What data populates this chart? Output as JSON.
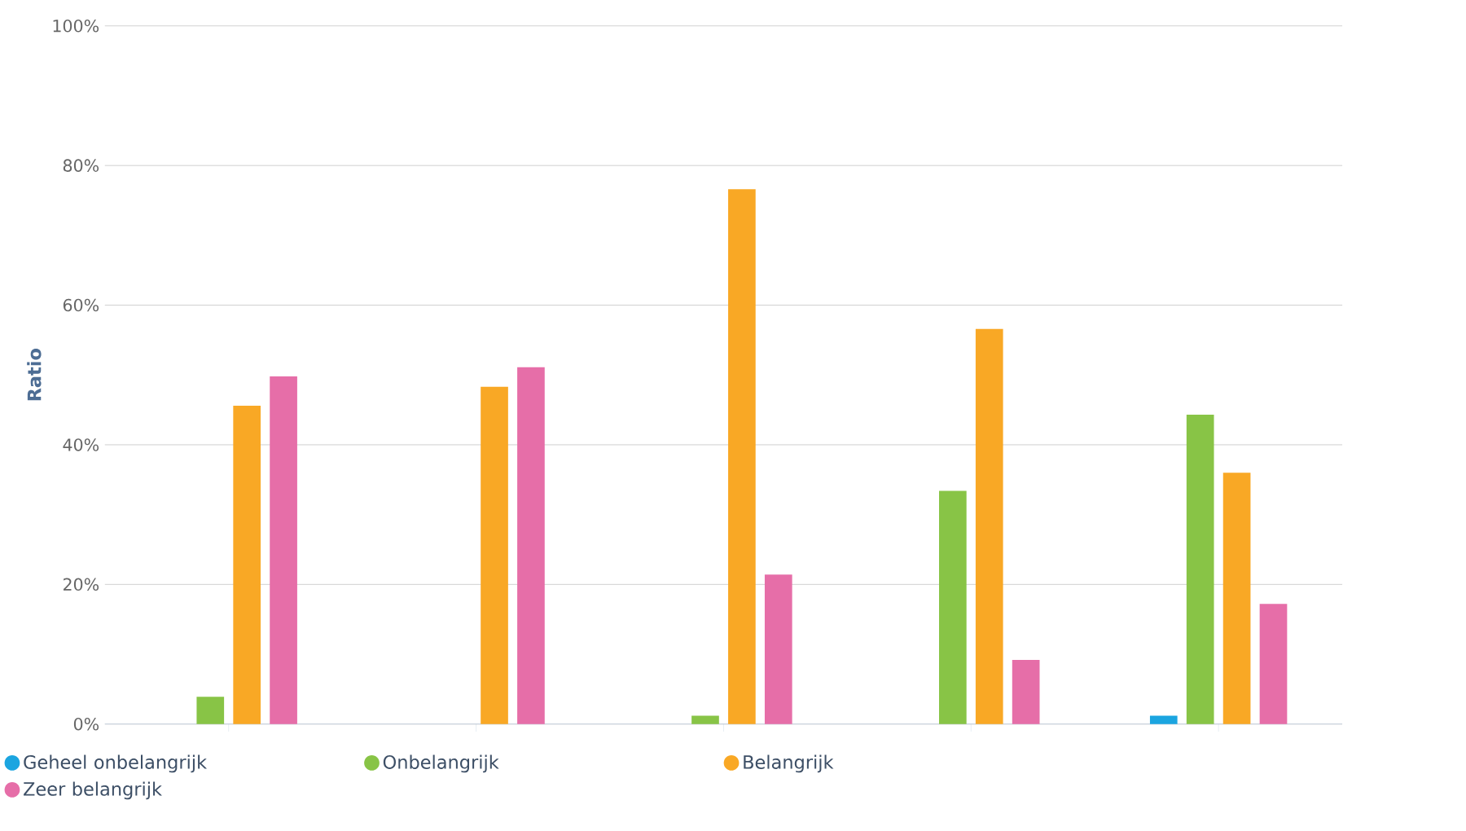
{
  "chart_data": {
    "type": "bar",
    "ylabel": "Ratio",
    "categories": [
      null,
      null,
      null,
      null,
      null
    ],
    "series": [
      {
        "name": "Geheel onbelangrijk",
        "color": "#1ba5e0",
        "values": [
          0,
          0,
          0,
          0,
          1.2
        ]
      },
      {
        "name": "Onbelangrijk",
        "color": "#88c446",
        "values": [
          3.9,
          0,
          1.2,
          33.4,
          44.3
        ]
      },
      {
        "name": "Belangrijk",
        "color": "#f9a825",
        "values": [
          45.6,
          48.3,
          76.6,
          56.6,
          36.0
        ]
      },
      {
        "name": "Zeer belangrijk",
        "color": "#e66ea8",
        "values": [
          49.8,
          51.1,
          21.4,
          9.2,
          17.2
        ]
      }
    ],
    "ylim": [
      0,
      100
    ],
    "yticks": [
      {
        "value": 0,
        "label": "0%"
      },
      {
        "value": 20,
        "label": "20%"
      },
      {
        "value": 40,
        "label": "40%"
      },
      {
        "value": 60,
        "label": "60%"
      },
      {
        "value": 80,
        "label": "80%"
      },
      {
        "value": 100,
        "label": "100%"
      }
    ],
    "grid": "y",
    "legend": "bottom"
  }
}
